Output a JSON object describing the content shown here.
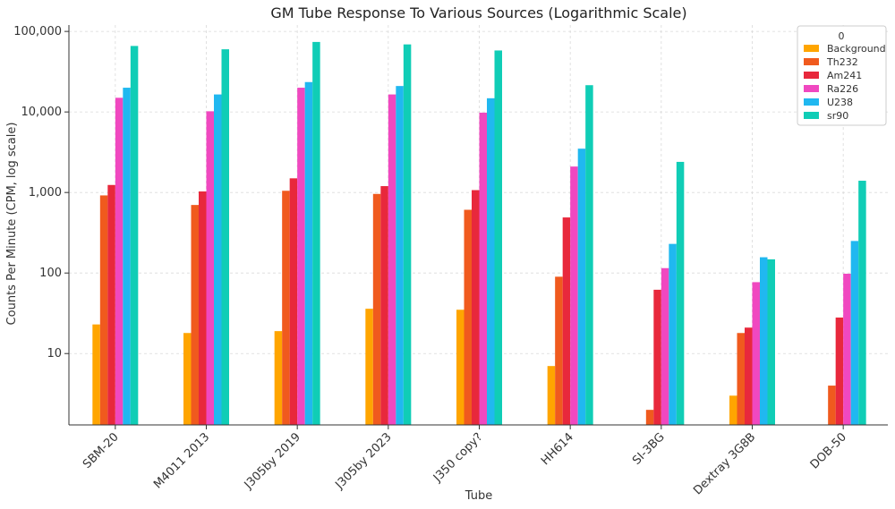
{
  "chart_data": {
    "type": "bar",
    "title": "GM Tube Response To Various Sources (Logarithmic Scale)",
    "xlabel": "Tube",
    "ylabel": "Counts Per Minute (CPM, log scale)",
    "yscale": "log",
    "ylim": [
      1.3,
      120000
    ],
    "yticks": [
      10,
      100,
      1000,
      10000,
      100000
    ],
    "ytick_labels": [
      "10",
      "100",
      "1,000",
      "10,000",
      "100,000"
    ],
    "grid": true,
    "legend_title": "0",
    "legend_position": "top-right",
    "categories": [
      "SBM-20",
      "M4011 2013",
      "J305by 2019",
      "J305by 2023",
      "J350 copy?",
      "HH614",
      "SI-3BG",
      "Dextray 3G8B",
      "DOB-50"
    ],
    "series": [
      {
        "name": "Background",
        "color": "#FFA500",
        "values": [
          23,
          18,
          19,
          36,
          35,
          7,
          null,
          3,
          null
        ]
      },
      {
        "name": "Th232",
        "color": "#F05A1E",
        "values": [
          920,
          700,
          1050,
          960,
          610,
          90,
          2,
          18,
          4
        ]
      },
      {
        "name": "Am241",
        "color": "#E8283C",
        "values": [
          1240,
          1030,
          1500,
          1200,
          1070,
          490,
          62,
          21,
          28
        ]
      },
      {
        "name": "Ra226",
        "color": "#F048C0",
        "values": [
          15000,
          10200,
          20000,
          16500,
          9800,
          2100,
          115,
          77,
          98
        ]
      },
      {
        "name": "U238",
        "color": "#20B8F0",
        "values": [
          20000,
          16500,
          23500,
          21000,
          14800,
          3500,
          230,
          157,
          250
        ]
      },
      {
        "name": "sr90",
        "color": "#10CDB6",
        "values": [
          66000,
          60000,
          74000,
          69000,
          58000,
          21500,
          2400,
          148,
          1400
        ]
      }
    ]
  }
}
